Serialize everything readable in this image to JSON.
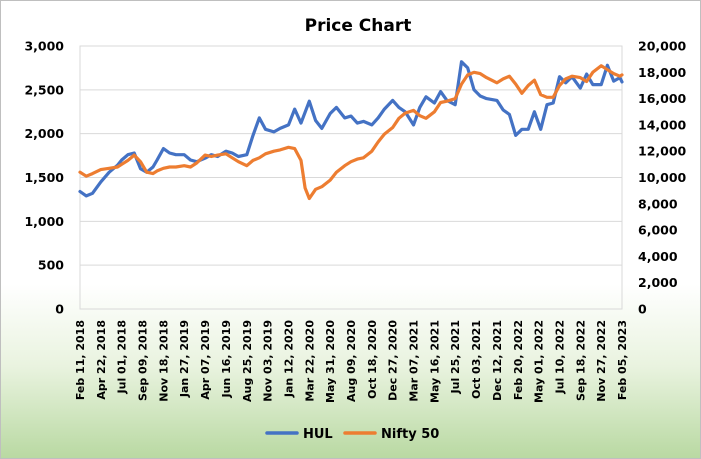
{
  "chart_data": {
    "type": "line",
    "title": "Price Chart",
    "xlabel": "",
    "ylabel": "",
    "y_left": {
      "lim": [
        0,
        3000
      ],
      "ticks": [
        "0",
        "500",
        "1,000",
        "1,500",
        "2,000",
        "2,500",
        "3,000"
      ]
    },
    "y_right": {
      "lim": [
        0,
        20000
      ],
      "ticks": [
        "0",
        "2,000",
        "4,000",
        "6,000",
        "8,000",
        "10,000",
        "12,000",
        "14,000",
        "16,000",
        "18,000",
        "20,000"
      ]
    },
    "x_ticks": [
      "Feb 11, 2018",
      "Apr 22, 2018",
      "Jul 01, 2018",
      "Sep 09, 2018",
      "Nov 18, 2018",
      "Jan 27, 2019",
      "Apr 07, 2019",
      "Jun 16, 2019",
      "Aug 25, 2019",
      "Nov 03, 2019",
      "Jan 12, 2020",
      "Mar 22, 2020",
      "May 31, 2020",
      "Aug 09, 2020",
      "Oct 18, 2020",
      "Dec 27, 2020",
      "Mar 07, 2021",
      "May 16, 2021",
      "Jul 25, 2021",
      "Oct 03, 2021",
      "Dec 12, 2021",
      "Feb 20, 2022",
      "May 01, 2022",
      "Jul 10, 2022",
      "Sep 18, 2022",
      "Nov 27, 2022",
      "Feb 05, 2023"
    ],
    "grid": true,
    "legend_position": "bottom",
    "series": [
      {
        "name": "HUL",
        "axis": "left",
        "color": "#4472c4",
        "x": [
          "2018-02-11",
          "2018-03-04",
          "2018-03-25",
          "2018-04-22",
          "2018-05-20",
          "2018-06-17",
          "2018-07-01",
          "2018-07-22",
          "2018-08-12",
          "2018-09-02",
          "2018-09-23",
          "2018-10-14",
          "2018-10-28",
          "2018-11-18",
          "2018-12-09",
          "2018-12-30",
          "2019-01-27",
          "2019-02-17",
          "2019-03-10",
          "2019-04-07",
          "2019-04-28",
          "2019-05-19",
          "2019-06-16",
          "2019-07-07",
          "2019-07-28",
          "2019-08-25",
          "2019-09-15",
          "2019-10-06",
          "2019-10-27",
          "2019-11-24",
          "2019-12-15",
          "2020-01-12",
          "2020-02-02",
          "2020-02-23",
          "2020-03-22",
          "2020-04-12",
          "2020-05-03",
          "2020-05-31",
          "2020-06-21",
          "2020-07-19",
          "2020-08-09",
          "2020-08-30",
          "2020-09-20",
          "2020-10-18",
          "2020-11-08",
          "2020-11-29",
          "2020-12-27",
          "2021-01-17",
          "2021-02-07",
          "2021-03-07",
          "2021-03-28",
          "2021-04-18",
          "2021-05-16",
          "2021-06-06",
          "2021-06-27",
          "2021-07-25",
          "2021-08-15",
          "2021-09-05",
          "2021-09-26",
          "2021-10-17",
          "2021-11-07",
          "2021-12-12",
          "2022-01-02",
          "2022-01-23",
          "2022-02-13",
          "2022-03-06",
          "2022-03-27",
          "2022-04-17",
          "2022-05-08",
          "2022-05-29",
          "2022-06-19",
          "2022-07-10",
          "2022-07-31",
          "2022-08-21",
          "2022-09-18",
          "2022-10-09",
          "2022-10-30",
          "2022-11-27",
          "2022-12-18",
          "2023-01-08",
          "2023-01-29",
          "2023-02-05"
        ],
        "values": [
          1340,
          1290,
          1320,
          1450,
          1560,
          1640,
          1700,
          1760,
          1780,
          1600,
          1560,
          1620,
          1700,
          1830,
          1780,
          1760,
          1760,
          1700,
          1680,
          1720,
          1760,
          1740,
          1800,
          1780,
          1740,
          1760,
          1980,
          2180,
          2050,
          2020,
          2060,
          2100,
          2280,
          2120,
          2370,
          2150,
          2060,
          2230,
          2300,
          2180,
          2200,
          2120,
          2140,
          2100,
          2180,
          2280,
          2380,
          2300,
          2250,
          2100,
          2300,
          2420,
          2350,
          2480,
          2380,
          2330,
          2820,
          2750,
          2500,
          2430,
          2400,
          2380,
          2270,
          2220,
          1980,
          2050,
          2050,
          2250,
          2050,
          2330,
          2350,
          2650,
          2580,
          2650,
          2520,
          2680,
          2560,
          2560,
          2780,
          2600,
          2640,
          2590
        ]
      },
      {
        "name": "Nifty 50",
        "axis": "right",
        "color": "#ed7d31",
        "x": [
          "2018-02-11",
          "2018-03-04",
          "2018-03-25",
          "2018-04-22",
          "2018-05-20",
          "2018-06-17",
          "2018-07-01",
          "2018-07-22",
          "2018-08-12",
          "2018-09-02",
          "2018-09-23",
          "2018-10-14",
          "2018-10-28",
          "2018-11-18",
          "2018-12-09",
          "2018-12-30",
          "2019-01-27",
          "2019-02-17",
          "2019-03-10",
          "2019-04-07",
          "2019-04-28",
          "2019-05-19",
          "2019-06-16",
          "2019-07-07",
          "2019-07-28",
          "2019-08-25",
          "2019-09-15",
          "2019-10-06",
          "2019-10-27",
          "2019-11-24",
          "2019-12-15",
          "2020-01-12",
          "2020-02-02",
          "2020-02-23",
          "2020-03-08",
          "2020-03-22",
          "2020-04-12",
          "2020-05-03",
          "2020-05-31",
          "2020-06-21",
          "2020-07-19",
          "2020-08-09",
          "2020-08-30",
          "2020-09-20",
          "2020-10-18",
          "2020-11-08",
          "2020-11-29",
          "2020-12-27",
          "2021-01-17",
          "2021-02-07",
          "2021-03-07",
          "2021-03-28",
          "2021-04-18",
          "2021-05-16",
          "2021-06-06",
          "2021-06-27",
          "2021-07-25",
          "2021-08-15",
          "2021-09-05",
          "2021-09-26",
          "2021-10-17",
          "2021-11-07",
          "2021-12-12",
          "2022-01-02",
          "2022-01-23",
          "2022-02-13",
          "2022-03-06",
          "2022-03-27",
          "2022-04-17",
          "2022-05-08",
          "2022-05-29",
          "2022-06-19",
          "2022-07-10",
          "2022-07-31",
          "2022-08-21",
          "2022-09-18",
          "2022-10-09",
          "2022-10-30",
          "2022-11-27",
          "2022-12-18",
          "2023-01-08",
          "2023-01-29",
          "2023-02-05"
        ],
        "values": [
          10400,
          10100,
          10300,
          10600,
          10700,
          10800,
          11000,
          11300,
          11700,
          11200,
          10400,
          10300,
          10500,
          10700,
          10800,
          10800,
          10900,
          10800,
          11100,
          11700,
          11600,
          11700,
          11800,
          11500,
          11200,
          10900,
          11300,
          11500,
          11800,
          12000,
          12100,
          12300,
          12200,
          11300,
          9200,
          8400,
          9100,
          9300,
          9800,
          10400,
          10900,
          11200,
          11400,
          11500,
          12000,
          12700,
          13300,
          13800,
          14500,
          14900,
          15100,
          14700,
          14500,
          15000,
          15700,
          15800,
          16000,
          17100,
          17800,
          18000,
          17900,
          17600,
          17200,
          17500,
          17700,
          17100,
          16400,
          17000,
          17400,
          16300,
          16100,
          16100,
          17000,
          17500,
          17700,
          17600,
          17300,
          18000,
          18500,
          18200,
          17900,
          17700,
          17800
        ]
      }
    ]
  }
}
